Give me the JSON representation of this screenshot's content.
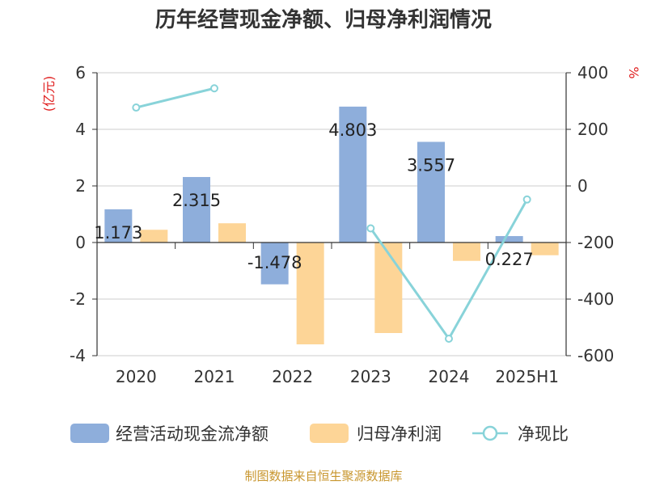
{
  "chart_data": {
    "type": "bar",
    "title": "历年经营现金净额、归母净利润情况",
    "categories": [
      "2020",
      "2021",
      "2022",
      "2023",
      "2024",
      "2025H1"
    ],
    "left_axis": {
      "label": "(亿元)",
      "ylim": [
        -4,
        6
      ],
      "ticks": [
        "-4",
        "-2",
        "0",
        "2",
        "4",
        "6"
      ]
    },
    "right_axis": {
      "label": "%",
      "ylim": [
        -600,
        400
      ],
      "ticks": [
        "-600",
        "-400",
        "-200",
        "0",
        "200",
        "400"
      ]
    },
    "series": [
      {
        "name": "经营活动现金流净额",
        "type": "bar",
        "axis": "left",
        "color": "#8eaedb",
        "values": [
          1.173,
          2.315,
          -1.478,
          4.803,
          3.557,
          0.227
        ],
        "labels": [
          "1.173",
          "2.315",
          "-1.478",
          "4.803",
          "3.557",
          "0.227"
        ]
      },
      {
        "name": "归母净利润",
        "type": "bar",
        "axis": "left",
        "color": "#fdd597",
        "values": [
          0.45,
          0.68,
          -3.6,
          -3.2,
          -0.65,
          -0.45
        ]
      },
      {
        "name": "净现比",
        "type": "line",
        "axis": "right",
        "color": "#88d3d9",
        "values": [
          277,
          345,
          null,
          -150,
          -540,
          -48
        ]
      }
    ],
    "grid": true,
    "legend_position": "bottom"
  },
  "source_note": "制图数据来自恒生聚源数据库"
}
